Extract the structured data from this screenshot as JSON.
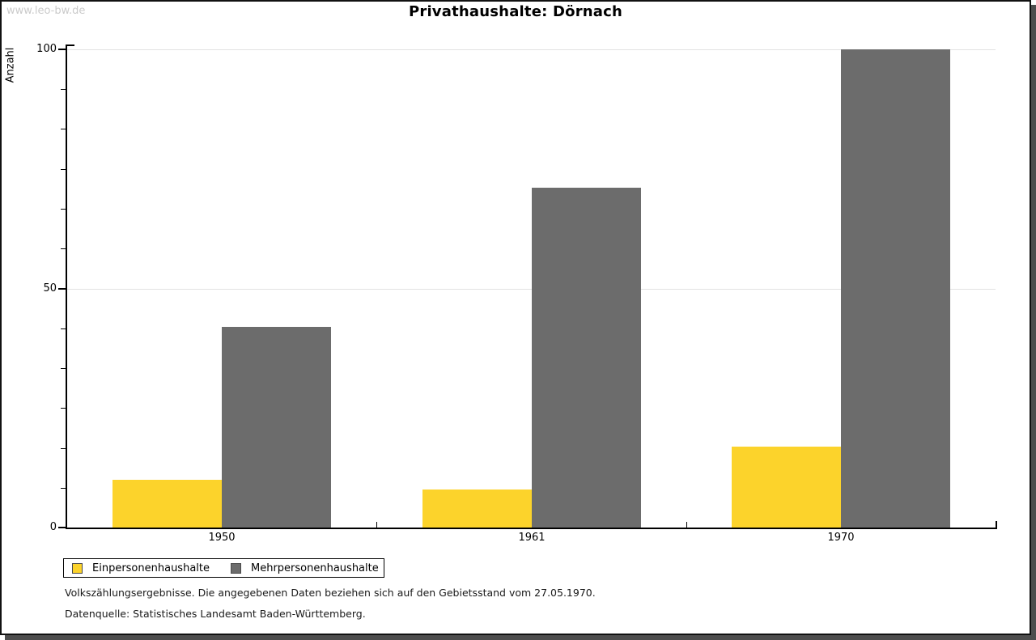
{
  "watermark": "www.leo-bw.de",
  "title": "Privathaushalte: Dörnach",
  "y_axis": {
    "label": "Anzahl",
    "major_ticks": [
      0,
      50,
      100
    ],
    "minor_divisions_per_major": 6
  },
  "legend": [
    {
      "label": "Einpersonenhaushalte",
      "color": "#FCD32B"
    },
    {
      "label": "Mehrpersonenhaushalte",
      "color": "#6C6C6C"
    }
  ],
  "footnotes": [
    "Volkszählungsergebnisse. Die angegebenen Daten beziehen sich auf den Gebietsstand vom 27.05.1970.",
    "Datenquelle: Statistisches Landesamt Baden-Württemberg."
  ],
  "colors": {
    "series_yellow": "#FCD32B",
    "series_gray": "#6C6C6C",
    "gridline": "#E2E2E2",
    "axis": "#000000",
    "watermark_text": "#CBCBCB",
    "frame_shadow": "#4D4D4D"
  },
  "chart_data": {
    "type": "bar",
    "title": "Privathaushalte: Dörnach",
    "categories": [
      "1950",
      "1961",
      "1970"
    ],
    "series": [
      {
        "name": "Einpersonenhaushalte",
        "color": "#FCD32B",
        "values": [
          10,
          8,
          17
        ]
      },
      {
        "name": "Mehrpersonenhaushalte",
        "color": "#6C6C6C",
        "values": [
          42,
          71,
          100
        ]
      }
    ],
    "xlabel": "",
    "ylabel": "Anzahl",
    "ylim": [
      0,
      100
    ],
    "grid": "horizontal-major-lines",
    "legend_position": "bottom-left"
  }
}
